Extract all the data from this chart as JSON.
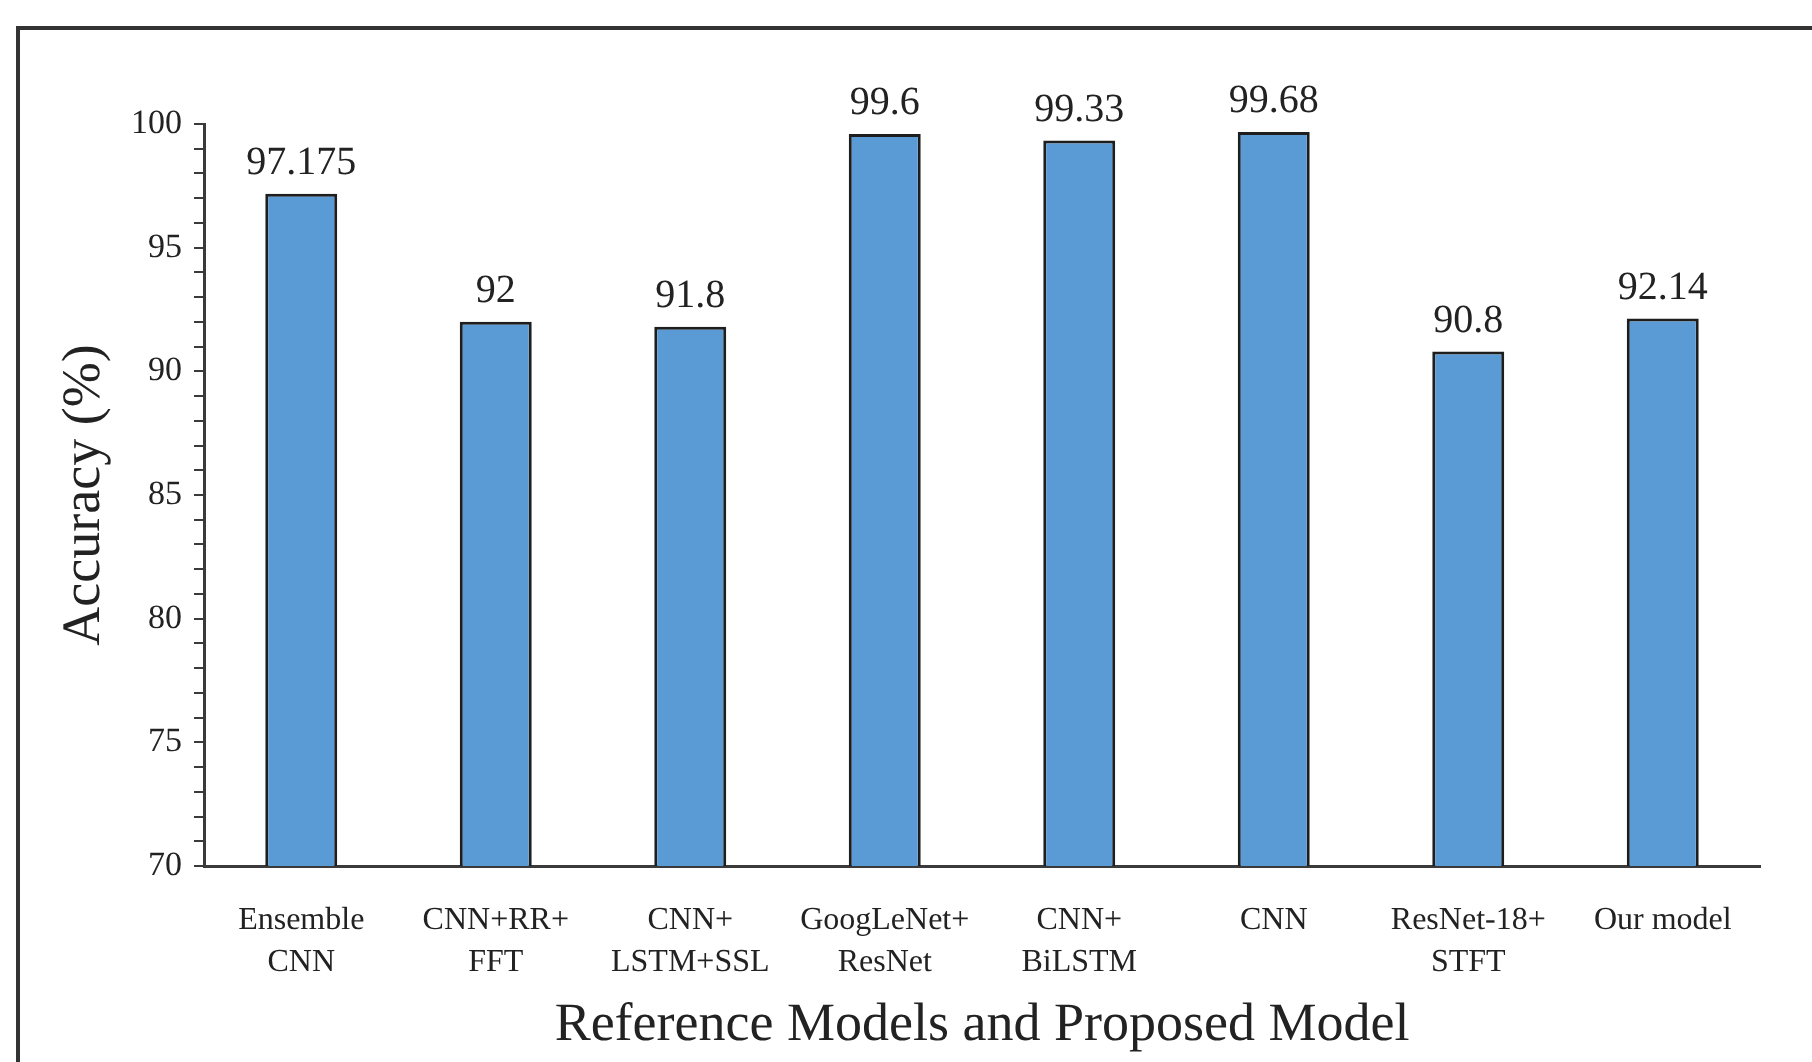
{
  "chart_data": {
    "type": "bar",
    "xlabel": "Reference Models and Proposed Model",
    "ylabel": "Accuracy (%)",
    "categories": [
      "Ensemble\nCNN",
      "CNN+RR+\nFFT",
      "CNN+\nLSTM+SSL",
      "GoogLeNet+\nResNet",
      "CNN+\nBiLSTM",
      "CNN",
      "ResNet-18+\nSTFT",
      "Our model"
    ],
    "values": [
      97.175,
      92,
      91.8,
      99.6,
      99.33,
      99.68,
      90.8,
      92.14
    ],
    "color": "#5b9bd5",
    "ylim": [
      70,
      100
    ],
    "yticks": [
      70,
      {
        "value": 71,
        "label": null
      },
      {
        "value": 72,
        "label": null
      },
      {
        "value": 73,
        "label": null
      },
      {
        "value": 74,
        "label": null
      },
      75,
      {
        "value": 76,
        "label": null
      },
      {
        "value": 77,
        "label": null
      },
      {
        "value": 78,
        "label": null
      },
      {
        "value": 79,
        "label": null
      },
      80,
      {
        "value": 81,
        "label": null
      },
      {
        "value": 82,
        "label": null
      },
      {
        "value": 83,
        "label": null
      },
      {
        "value": 84,
        "label": null
      },
      85,
      {
        "value": 86,
        "label": null
      },
      {
        "value": 87,
        "label": null
      },
      {
        "value": 88,
        "label": null
      },
      {
        "value": 89,
        "label": null
      },
      90,
      {
        "value": 91,
        "label": null
      },
      {
        "value": 92,
        "label": null
      },
      {
        "value": 93,
        "label": null
      },
      {
        "value": 94,
        "label": null
      },
      95,
      {
        "value": 96,
        "label": null
      },
      {
        "value": 97,
        "label": null
      },
      {
        "value": 98,
        "label": null
      },
      {
        "value": 99,
        "label": null
      },
      100
    ],
    "data_labels": true
  }
}
